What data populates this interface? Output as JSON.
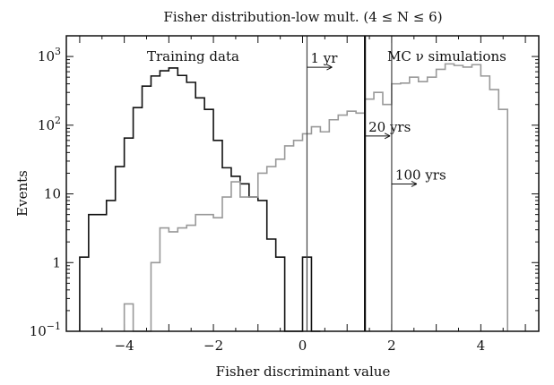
{
  "chart_data": {
    "type": "histogram",
    "title": "Fisher distribution-low mult. (4 ≤ N ≤ 6)",
    "xlabel": "Fisher discriminant value",
    "ylabel": "Events",
    "y_scale": "log",
    "xlim": [
      -5.3,
      5.3
    ],
    "ylim": [
      0.1,
      2000
    ],
    "bin_width": 0.2,
    "x_ticks": [
      {
        "value": -4,
        "label": "−4"
      },
      {
        "value": -2,
        "label": "−2"
      },
      {
        "value": 0,
        "label": "0"
      },
      {
        "value": 2,
        "label": "2"
      },
      {
        "value": 4,
        "label": "4"
      }
    ],
    "y_ticks": [
      {
        "value": 0.1,
        "base": "10",
        "exp": "−1"
      },
      {
        "value": 1,
        "label": "1"
      },
      {
        "value": 10,
        "label": "10"
      },
      {
        "value": 100,
        "base": "10",
        "exp": "2"
      },
      {
        "value": 1000,
        "base": "10",
        "exp": "3"
      }
    ],
    "series": [
      {
        "name": "Training data",
        "color": "#111111",
        "x": [
          -4.9,
          -4.7,
          -4.5,
          -4.3,
          -4.1,
          -3.9,
          -3.7,
          -3.5,
          -3.3,
          -3.1,
          -2.9,
          -2.7,
          -2.5,
          -2.3,
          -2.1,
          -1.9,
          -1.7,
          -1.5,
          -1.3,
          -1.1,
          -0.9,
          -0.7,
          -0.5,
          -0.3,
          -0.1,
          0.1,
          0.3
        ],
        "values": [
          1.2,
          5,
          5,
          8,
          25,
          65,
          180,
          370,
          520,
          620,
          680,
          530,
          420,
          250,
          170,
          60,
          24,
          18,
          14,
          9,
          8,
          2.2,
          1.2,
          0.1,
          0.1,
          1.2,
          0.1
        ]
      },
      {
        "name": "MC ν simulations",
        "color": "#999999",
        "x": [
          -3.9,
          -3.7,
          -3.5,
          -3.3,
          -3.1,
          -2.9,
          -2.7,
          -2.5,
          -2.3,
          -2.1,
          -1.9,
          -1.7,
          -1.5,
          -1.3,
          -1.1,
          -0.9,
          -0.7,
          -0.5,
          -0.3,
          -0.1,
          0.1,
          0.3,
          0.5,
          0.7,
          0.9,
          1.1,
          1.3,
          1.5,
          1.7,
          1.9,
          2.1,
          2.3,
          2.5,
          2.7,
          2.9,
          3.1,
          3.3,
          3.5,
          3.7,
          3.9,
          4.1,
          4.3,
          4.5
        ],
        "values": [
          0.25,
          0.1,
          0.1,
          1,
          3.2,
          2.8,
          3.2,
          3.5,
          5,
          5,
          4.5,
          9,
          15,
          9,
          9,
          20,
          25,
          32,
          50,
          60,
          75,
          95,
          80,
          120,
          140,
          160,
          150,
          240,
          300,
          200,
          400,
          410,
          500,
          430,
          500,
          650,
          780,
          740,
          700,
          760,
          520,
          330,
          170
        ]
      }
    ],
    "cut_lines": [
      {
        "x": 0.1,
        "label": "1 yr",
        "label_y": 1000
      },
      {
        "x": 1.4,
        "label": "20 yrs",
        "label_y": 100
      },
      {
        "x": 2.0,
        "label": "100 yrs",
        "label_y": 20
      }
    ],
    "annotations": [
      "Training data",
      "MC ν simulations"
    ]
  }
}
